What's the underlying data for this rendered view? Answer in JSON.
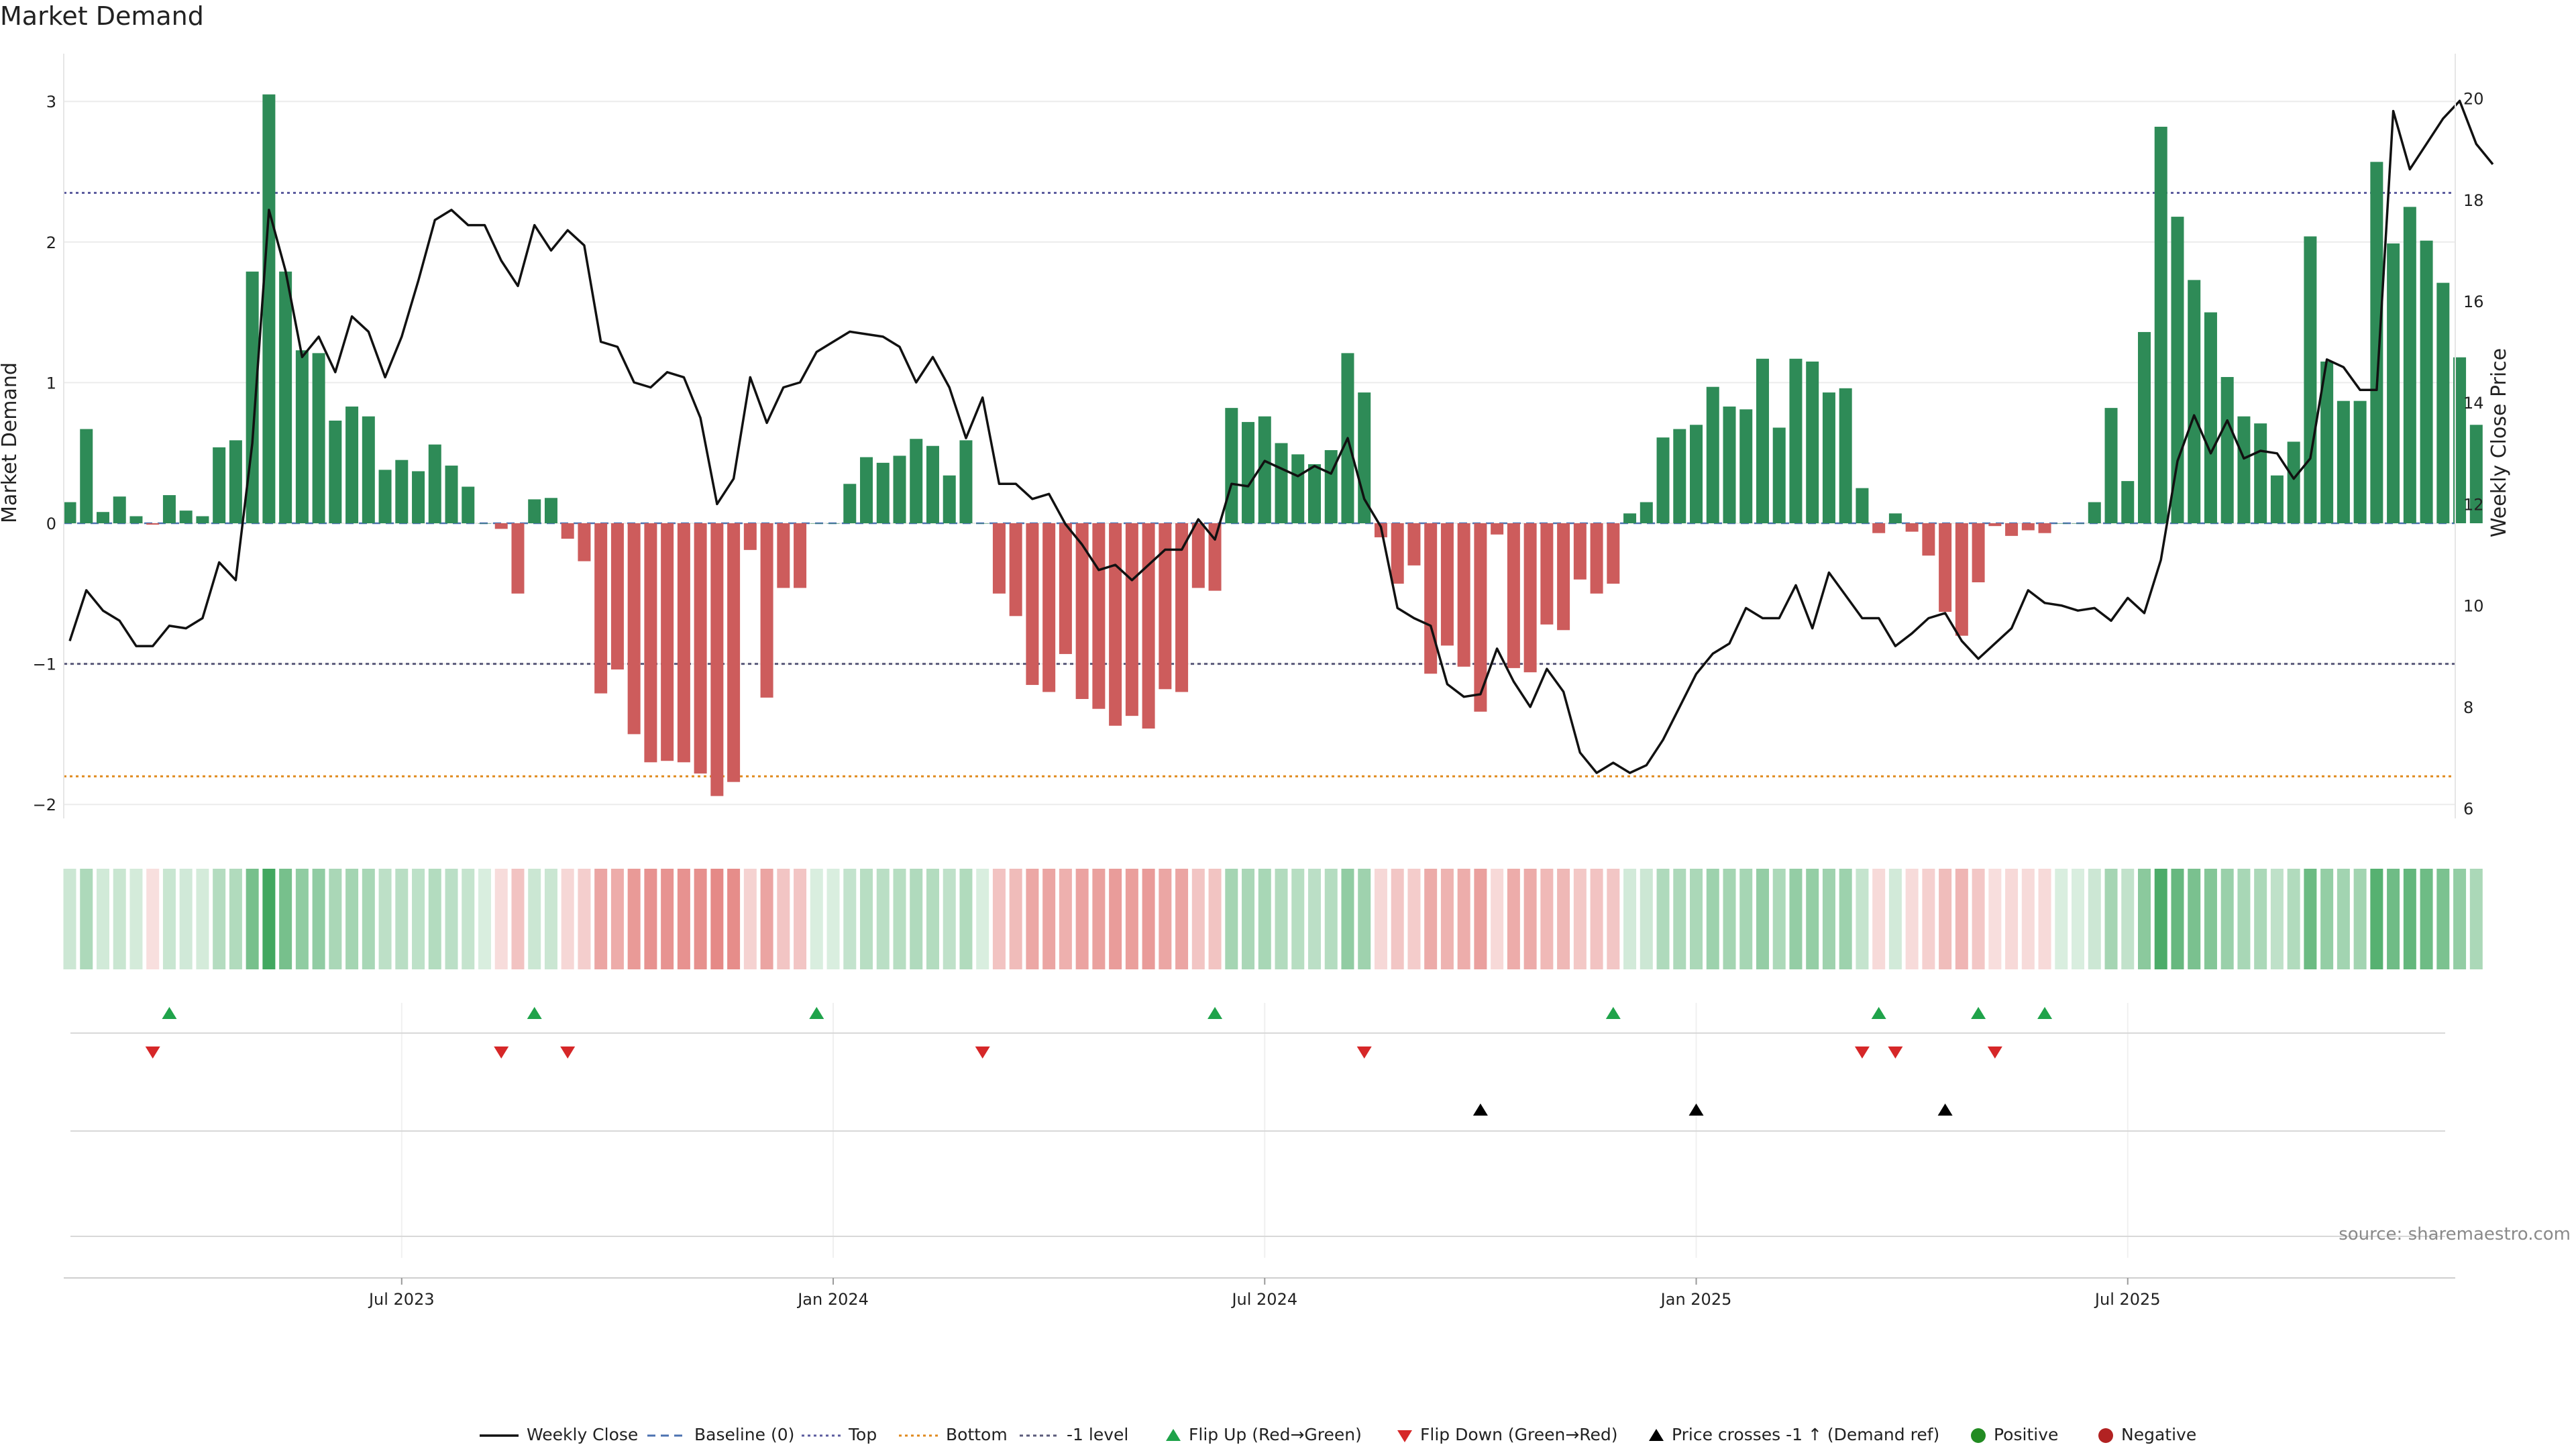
{
  "chart_data": {
    "type": "bar",
    "title": "Market Demand",
    "ylabel_left": "Market Demand",
    "ylabel_right": "Weekly Close Price",
    "source": "source: sharemaestro.com",
    "ylim_left": [
      -2.2,
      3.3
    ],
    "ylim_right": [
      6,
      20.8
    ],
    "yticks_left": [
      "3",
      "2",
      "1",
      "0",
      "−1",
      "−2"
    ],
    "yticks_left_values": [
      3,
      2,
      1,
      0,
      -1,
      -2
    ],
    "yticks_right": [
      "20",
      "18",
      "16",
      "14",
      "12",
      "10",
      "8",
      "6"
    ],
    "yticks_right_values": [
      20,
      18,
      16,
      14,
      12,
      10,
      8,
      6
    ],
    "xticks": [
      "Jul 2023",
      "Jan 2024",
      "Jul 2024",
      "Jan 2025",
      "Jul 2025"
    ],
    "xticks_week_index": [
      20,
      46,
      72,
      98,
      124
    ],
    "levels": {
      "top": 2.35,
      "minus_one": -1,
      "bottom": -1.8,
      "baseline": 0
    },
    "level_colors": {
      "top": "#5b5b9e",
      "minus_one": "#5a5a7a",
      "bottom": "#e08a1e",
      "baseline": "#4c72b0"
    },
    "bar_colors": {
      "positive": "#2e8b57",
      "negative": "#cd5c5c"
    },
    "demand": [
      0.15,
      0.67,
      0.08,
      0.19,
      0.05,
      -0.01,
      0.2,
      0.09,
      0.05,
      0.54,
      0.59,
      1.79,
      3.05,
      1.79,
      1.23,
      1.21,
      0.73,
      0.83,
      0.76,
      0.38,
      0.45,
      0.37,
      0.56,
      0.41,
      0.26,
      0.0,
      -0.04,
      -0.5,
      0.17,
      0.18,
      -0.11,
      -0.27,
      -1.21,
      -1.04,
      -1.5,
      -1.7,
      -1.69,
      -1.7,
      -1.78,
      -1.94,
      -1.84,
      -0.19,
      -1.24,
      -0.46,
      -0.46,
      0.0,
      0.0,
      0.28,
      0.47,
      0.43,
      0.48,
      0.6,
      0.55,
      0.34,
      0.59,
      0.0,
      -0.5,
      -0.66,
      -1.15,
      -1.2,
      -0.93,
      -1.25,
      -1.32,
      -1.44,
      -1.37,
      -1.46,
      -1.18,
      -1.2,
      -0.46,
      -0.48,
      0.82,
      0.72,
      0.76,
      0.57,
      0.49,
      0.42,
      0.52,
      1.21,
      0.93,
      -0.1,
      -0.43,
      -0.3,
      -1.07,
      -0.87,
      -1.02,
      -1.34,
      -0.08,
      -1.03,
      -1.06,
      -0.72,
      -0.76,
      -0.4,
      -0.5,
      -0.43,
      0.07,
      0.15,
      0.61,
      0.67,
      0.7,
      0.97,
      0.83,
      0.81,
      1.17,
      0.68,
      1.17,
      1.15,
      0.93,
      0.96,
      0.25,
      -0.07,
      0.07,
      -0.06,
      -0.23,
      -0.63,
      -0.8,
      -0.42,
      -0.02,
      -0.09,
      -0.05,
      -0.07,
      0.0,
      0.0,
      0.15,
      0.82,
      0.3,
      1.36,
      2.82,
      2.18,
      1.73,
      1.5,
      1.04,
      0.76,
      0.71,
      0.34,
      0.58,
      2.04,
      1.15,
      0.87,
      0.87,
      2.57,
      1.99,
      2.25,
      2.01,
      1.71,
      1.18,
      0.7
    ],
    "weekly_close": [
      9.3,
      10.3,
      9.9,
      9.7,
      9.2,
      9.2,
      9.6,
      9.55,
      9.75,
      10.85,
      10.5,
      13.2,
      17.8,
      16.6,
      14.9,
      15.3,
      14.6,
      15.7,
      15.4,
      14.5,
      15.3,
      16.4,
      17.6,
      17.8,
      17.5,
      17.5,
      16.8,
      16.3,
      17.5,
      17.0,
      17.4,
      17.1,
      15.2,
      15.1,
      14.4,
      14.3,
      14.6,
      14.5,
      13.7,
      12.0,
      12.5,
      14.5,
      13.6,
      14.3,
      14.4,
      15.0,
      15.2,
      15.4,
      15.35,
      15.3,
      15.1,
      14.4,
      14.9,
      14.3,
      13.3,
      14.1,
      12.4,
      12.4,
      12.1,
      12.2,
      11.6,
      11.2,
      10.7,
      10.8,
      10.5,
      10.8,
      11.1,
      11.1,
      11.7,
      11.3,
      12.4,
      12.35,
      12.85,
      12.7,
      12.55,
      12.75,
      12.6,
      13.3,
      12.1,
      11.55,
      9.95,
      9.75,
      9.6,
      8.45,
      8.2,
      8.25,
      9.15,
      8.5,
      8.0,
      8.75,
      8.3,
      7.1,
      6.7,
      6.9,
      6.7,
      6.85,
      7.35,
      8.0,
      8.65,
      9.05,
      9.25,
      9.95,
      9.75,
      9.75,
      10.4,
      9.55,
      10.65,
      10.2,
      9.75,
      9.75,
      9.2,
      9.45,
      9.75,
      9.85,
      9.3,
      8.95,
      9.25,
      9.55,
      10.3,
      10.05,
      10.0,
      9.9,
      9.95,
      9.7,
      10.15,
      9.85,
      10.9,
      12.85,
      13.75,
      13.0,
      13.65,
      12.9,
      13.05,
      13.0,
      12.5,
      12.9,
      14.85,
      14.7,
      14.25,
      14.25,
      19.75,
      18.6,
      19.1,
      19.6,
      19.95,
      19.1,
      18.7
    ],
    "heat_strip_colors": {
      "positive": "#2e9e4f",
      "negative": "#d9534f"
    },
    "flip_up_weeks": [
      6,
      28,
      45,
      69,
      93,
      109,
      115,
      119
    ],
    "flip_down_weeks": [
      5,
      26,
      30,
      55,
      78,
      108,
      110,
      116
    ],
    "price_cross_weeks": [
      85,
      98,
      113
    ],
    "marker_colors": {
      "flip_up": "#1fa34a",
      "flip_down": "#d62728",
      "price_cross": "#000000",
      "positive": "#228b22",
      "negative": "#b22222"
    },
    "legend": [
      {
        "label": "Weekly Close",
        "style": "solid-line"
      },
      {
        "label": "Baseline (0)",
        "style": "dashed-blue"
      },
      {
        "label": "Top",
        "style": "dotted-purple"
      },
      {
        "label": "Bottom",
        "style": "dotted-orange"
      },
      {
        "label": "-1 level",
        "style": "dotted-gray"
      },
      {
        "label": "Flip Up (Red→Green)",
        "style": "triangle-up-green"
      },
      {
        "label": "Flip Down (Green→Red)",
        "style": "triangle-down-red"
      },
      {
        "label": "Price crosses -1 ↑ (Demand ref)",
        "style": "triangle-up-black"
      },
      {
        "label": "Positive",
        "style": "dot-green"
      },
      {
        "label": "Negative",
        "style": "dot-red"
      }
    ]
  }
}
